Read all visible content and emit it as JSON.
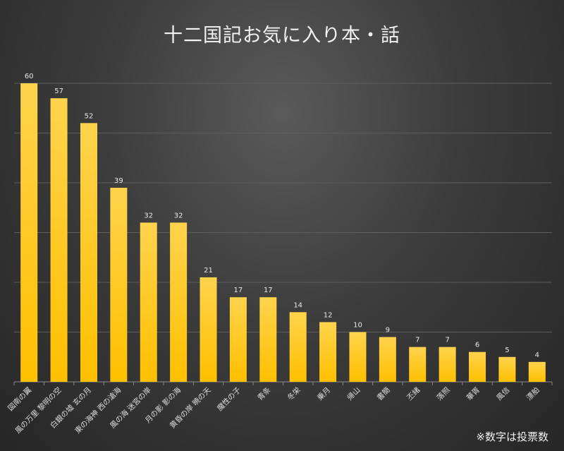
{
  "chart_data": {
    "type": "bar",
    "title": "十二国記お気に入り本・話",
    "note": "※数字は投票数",
    "categories": [
      "図南の翼",
      "風の万里 黎明の空",
      "白銀の墟 玄の月",
      "東の海神 西の滄海",
      "風の海 迷宮の岸",
      "月の影 影の海",
      "黄昏の岸 暁の天",
      "魔性の子",
      "青条",
      "冬栄",
      "乗月",
      "帰山",
      "書簡",
      "丕緒",
      "落照",
      "華胥",
      "風信",
      "漂舶"
    ],
    "values": [
      60,
      57,
      52,
      39,
      32,
      32,
      21,
      17,
      17,
      14,
      12,
      10,
      9,
      7,
      7,
      6,
      5,
      4
    ],
    "ylim": [
      0,
      60
    ],
    "grid": true,
    "bar_color": "#ffc000",
    "background": "#3c3c3c"
  }
}
